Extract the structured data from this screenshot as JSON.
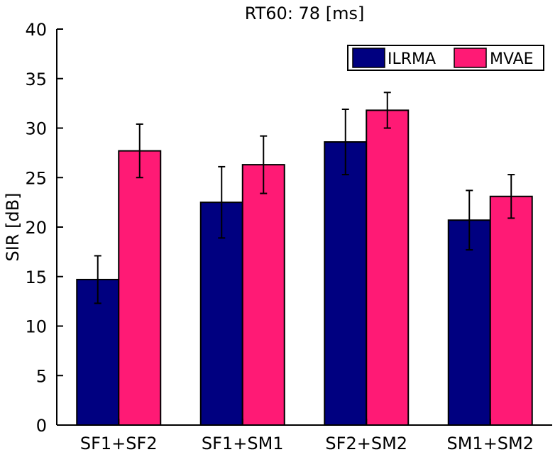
{
  "chart_data": {
    "type": "bar",
    "title": "RT60: 78 [ms]",
    "xlabel": "",
    "ylabel": "SIR [dB]",
    "ylim": [
      0,
      40
    ],
    "yticks": [
      0,
      5,
      10,
      15,
      20,
      25,
      30,
      35,
      40
    ],
    "categories": [
      "SF1+SF2",
      "SF1+SM1",
      "SF2+SM2",
      "SM1+SM2"
    ],
    "series": [
      {
        "name": "ILRMA",
        "color": "#000080",
        "values": [
          14.7,
          22.5,
          28.6,
          20.7
        ],
        "error": [
          2.4,
          3.6,
          3.3,
          3.0
        ]
      },
      {
        "name": "MVAE",
        "color": "#ff1a75",
        "values": [
          27.7,
          26.3,
          31.8,
          23.1
        ],
        "error": [
          2.7,
          2.9,
          1.8,
          2.2
        ]
      }
    ],
    "legend_position": "top-right",
    "grid": false
  }
}
